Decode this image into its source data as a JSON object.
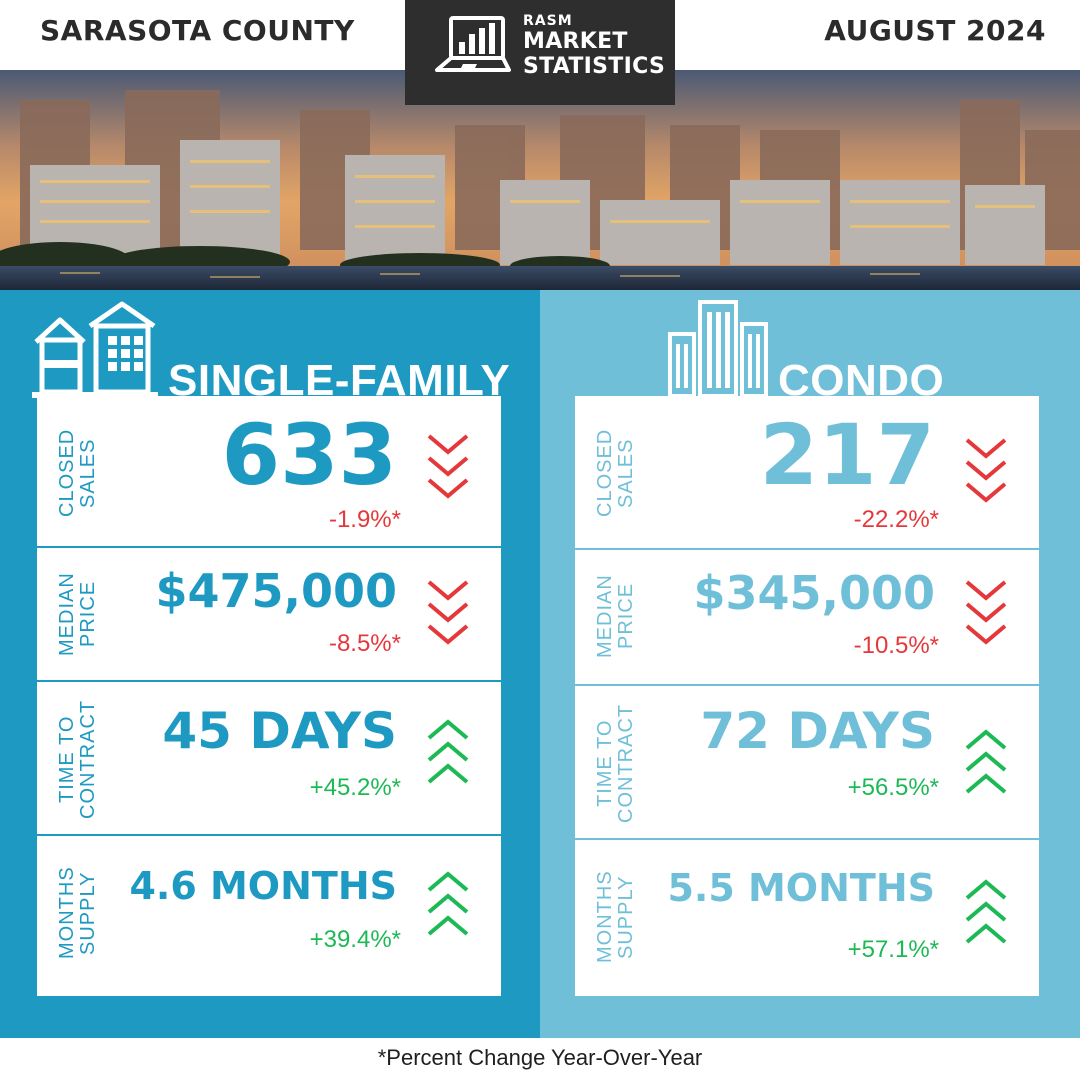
{
  "header": {
    "county": "SARASOTA COUNTY",
    "month": "AUGUST 2024",
    "logo": {
      "line1": "RASM",
      "line2": "MARKET",
      "line3": "STATISTICS"
    }
  },
  "colors": {
    "single_family": "#1e9ac2",
    "condo": "#6fbfd9",
    "down": "#e5383b",
    "up": "#1db955"
  },
  "single_family": {
    "title": "SINGLE-FAMILY",
    "metrics": [
      {
        "label": "CLOSED SALES",
        "value": "633",
        "change": "-1.9%*",
        "direction": "down"
      },
      {
        "label": "MEDIAN PRICE",
        "value": "$475,000",
        "change": "-8.5%*",
        "direction": "down"
      },
      {
        "label": "TIME TO CONTRACT",
        "value": "45 DAYS",
        "change": "+45.2%*",
        "direction": "up"
      },
      {
        "label": "MONTHS SUPPLY",
        "value": "4.6 MONTHS",
        "change": "+39.4%*",
        "direction": "up"
      }
    ]
  },
  "condo": {
    "title": "CONDO",
    "metrics": [
      {
        "label": "CLOSED SALES",
        "value": "217",
        "change": "-22.2%*",
        "direction": "down"
      },
      {
        "label": "MEDIAN PRICE",
        "value": "$345,000",
        "change": "-10.5%*",
        "direction": "down"
      },
      {
        "label": "TIME TO CONTRACT",
        "value": "72 DAYS",
        "change": "+56.5%*",
        "direction": "up"
      },
      {
        "label": "MONTHS SUPPLY",
        "value": "5.5 MONTHS",
        "change": "+57.1%*",
        "direction": "up"
      }
    ]
  },
  "footnote": "*Percent Change Year-Over-Year"
}
